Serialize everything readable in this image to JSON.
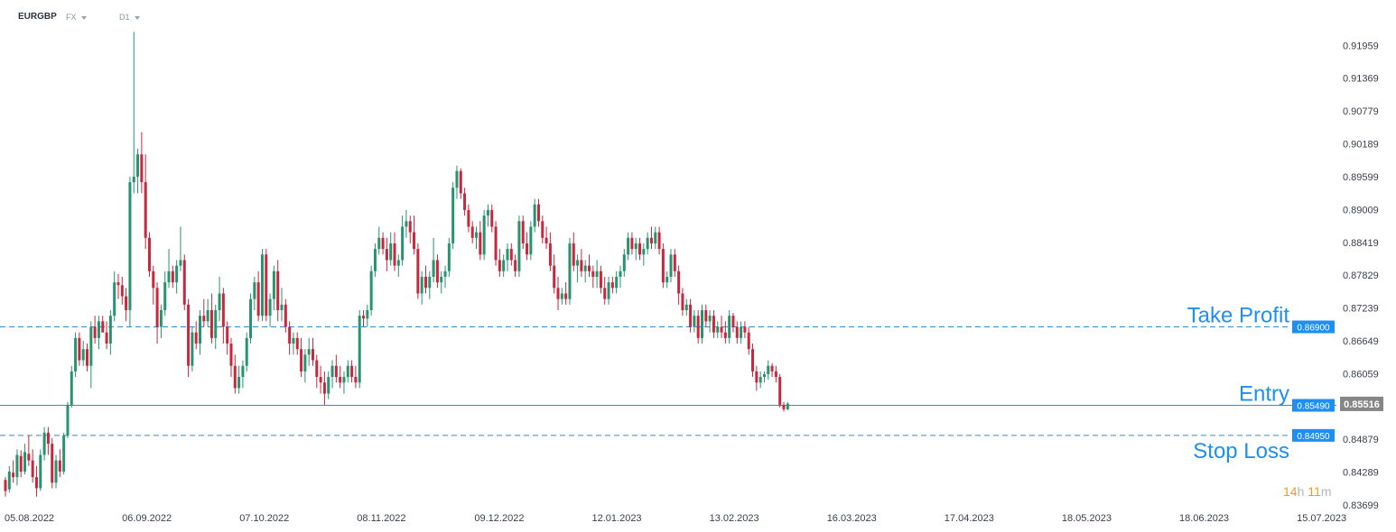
{
  "header": {
    "symbol": "EURGBP",
    "market": "FX",
    "timeframe": "D1"
  },
  "countdown": {
    "hours": "14",
    "hours_unit": "h",
    "minutes": "11",
    "minutes_unit": "m"
  },
  "colors": {
    "up": "#26946f",
    "down": "#c7283e",
    "level_line": "#2b8fd6",
    "level_label": "#1e8ff0",
    "price_label": "#868686",
    "axis_text": "#3a3f48"
  },
  "chart_data": {
    "type": "candlestick",
    "y_range": [
      0.837,
      0.9232
    ],
    "y_ticks": [
      "0.91959",
      "0.91369",
      "0.90779",
      "0.90189",
      "0.89599",
      "0.89009",
      "0.88419",
      "0.87829",
      "0.87239",
      "0.86649",
      "0.86059",
      "0.85469",
      "0.84879",
      "0.84289",
      "0.83699"
    ],
    "x_tick_labels": [
      "05.08.2022",
      "06.09.2022",
      "07.10.2022",
      "08.11.2022",
      "09.12.2022",
      "12.01.2023",
      "13.02.2023",
      "16.03.2023",
      "17.04.2023",
      "18.05.2023",
      "18.06.2023",
      "15.07.2023"
    ],
    "current_price": "0.85516",
    "levels": [
      {
        "name": "Take Profit",
        "price": 0.869,
        "label": "0.86900",
        "style": "dashed"
      },
      {
        "name": "Entry",
        "price": 0.8549,
        "label": "0.85490",
        "style": "solid"
      },
      {
        "name": "Stop Loss",
        "price": 0.8495,
        "label": "0.84950",
        "style": "dashed"
      }
    ],
    "candles": [
      [
        0.8415,
        0.842,
        0.8385,
        0.8395
      ],
      [
        0.8398,
        0.844,
        0.8392,
        0.843
      ],
      [
        0.8428,
        0.845,
        0.841,
        0.842
      ],
      [
        0.842,
        0.847,
        0.8405,
        0.846
      ],
      [
        0.8458,
        0.8468,
        0.842,
        0.843
      ],
      [
        0.843,
        0.848,
        0.8425,
        0.8465
      ],
      [
        0.8462,
        0.8495,
        0.844,
        0.845
      ],
      [
        0.845,
        0.847,
        0.841,
        0.842
      ],
      [
        0.842,
        0.844,
        0.8385,
        0.84
      ],
      [
        0.84,
        0.847,
        0.8395,
        0.846
      ],
      [
        0.846,
        0.851,
        0.845,
        0.85
      ],
      [
        0.85,
        0.851,
        0.846,
        0.848
      ],
      [
        0.848,
        0.849,
        0.84,
        0.841
      ],
      [
        0.841,
        0.846,
        0.84,
        0.845
      ],
      [
        0.845,
        0.847,
        0.842,
        0.843
      ],
      [
        0.843,
        0.85,
        0.8425,
        0.8495
      ],
      [
        0.8495,
        0.8555,
        0.849,
        0.855
      ],
      [
        0.855,
        0.862,
        0.8545,
        0.861
      ],
      [
        0.861,
        0.868,
        0.86,
        0.867
      ],
      [
        0.867,
        0.868,
        0.862,
        0.863
      ],
      [
        0.863,
        0.8665,
        0.862,
        0.865
      ],
      [
        0.865,
        0.866,
        0.861,
        0.862
      ],
      [
        0.862,
        0.87,
        0.858,
        0.869
      ],
      [
        0.869,
        0.871,
        0.866,
        0.867
      ],
      [
        0.867,
        0.871,
        0.865,
        0.87
      ],
      [
        0.87,
        0.871,
        0.868,
        0.868
      ],
      [
        0.868,
        0.87,
        0.865,
        0.866
      ],
      [
        0.866,
        0.872,
        0.864,
        0.871
      ],
      [
        0.871,
        0.879,
        0.87,
        0.877
      ],
      [
        0.877,
        0.8785,
        0.874,
        0.8765
      ],
      [
        0.8765,
        0.878,
        0.873,
        0.8745
      ],
      [
        0.8745,
        0.876,
        0.87,
        0.872
      ],
      [
        0.872,
        0.896,
        0.869,
        0.895
      ],
      [
        0.895,
        0.922,
        0.893,
        0.896
      ],
      [
        0.896,
        0.901,
        0.893,
        0.9
      ],
      [
        0.9,
        0.904,
        0.893,
        0.895
      ],
      [
        0.895,
        0.9,
        0.883,
        0.885
      ],
      [
        0.885,
        0.886,
        0.878,
        0.879
      ],
      [
        0.879,
        0.88,
        0.873,
        0.876
      ],
      [
        0.876,
        0.877,
        0.866,
        0.869
      ],
      [
        0.869,
        0.873,
        0.867,
        0.872
      ],
      [
        0.872,
        0.879,
        0.871,
        0.877
      ],
      [
        0.877,
        0.883,
        0.876,
        0.879
      ],
      [
        0.879,
        0.88,
        0.876,
        0.877
      ],
      [
        0.877,
        0.881,
        0.875,
        0.88
      ],
      [
        0.88,
        0.887,
        0.879,
        0.881
      ],
      [
        0.881,
        0.882,
        0.872,
        0.873
      ],
      [
        0.873,
        0.874,
        0.86,
        0.862
      ],
      [
        0.862,
        0.869,
        0.861,
        0.868
      ],
      [
        0.868,
        0.87,
        0.865,
        0.866
      ],
      [
        0.866,
        0.872,
        0.864,
        0.871
      ],
      [
        0.871,
        0.874,
        0.869,
        0.87
      ],
      [
        0.87,
        0.874,
        0.869,
        0.872
      ],
      [
        0.872,
        0.875,
        0.866,
        0.867
      ],
      [
        0.867,
        0.873,
        0.865,
        0.872
      ],
      [
        0.872,
        0.878,
        0.87,
        0.875
      ],
      [
        0.875,
        0.876,
        0.866,
        0.869
      ],
      [
        0.869,
        0.87,
        0.864,
        0.866
      ],
      [
        0.866,
        0.867,
        0.86,
        0.862
      ],
      [
        0.862,
        0.864,
        0.857,
        0.858
      ],
      [
        0.858,
        0.862,
        0.857,
        0.86
      ],
      [
        0.86,
        0.863,
        0.858,
        0.862
      ],
      [
        0.862,
        0.868,
        0.861,
        0.867
      ],
      [
        0.867,
        0.875,
        0.866,
        0.874
      ],
      [
        0.874,
        0.878,
        0.872,
        0.877
      ],
      [
        0.877,
        0.879,
        0.87,
        0.871
      ],
      [
        0.871,
        0.883,
        0.87,
        0.882
      ],
      [
        0.882,
        0.883,
        0.87,
        0.871
      ],
      [
        0.871,
        0.875,
        0.869,
        0.874
      ],
      [
        0.874,
        0.88,
        0.872,
        0.879
      ],
      [
        0.879,
        0.881,
        0.87,
        0.872
      ],
      [
        0.872,
        0.876,
        0.87,
        0.873
      ],
      [
        0.873,
        0.874,
        0.868,
        0.869
      ],
      [
        0.869,
        0.87,
        0.864,
        0.866
      ],
      [
        0.866,
        0.868,
        0.864,
        0.867
      ],
      [
        0.867,
        0.868,
        0.864,
        0.865
      ],
      [
        0.865,
        0.867,
        0.86,
        0.861
      ],
      [
        0.861,
        0.865,
        0.859,
        0.864
      ],
      [
        0.864,
        0.867,
        0.862,
        0.865
      ],
      [
        0.865,
        0.867,
        0.862,
        0.863
      ],
      [
        0.863,
        0.864,
        0.858,
        0.86
      ],
      [
        0.86,
        0.862,
        0.857,
        0.859
      ],
      [
        0.859,
        0.861,
        0.855,
        0.857
      ],
      [
        0.857,
        0.861,
        0.856,
        0.86
      ],
      [
        0.86,
        0.863,
        0.858,
        0.862
      ],
      [
        0.862,
        0.864,
        0.859,
        0.86
      ],
      [
        0.86,
        0.862,
        0.858,
        0.859
      ],
      [
        0.859,
        0.861,
        0.857,
        0.86
      ],
      [
        0.86,
        0.863,
        0.859,
        0.862
      ],
      [
        0.862,
        0.863,
        0.859,
        0.86
      ],
      [
        0.86,
        0.862,
        0.858,
        0.859
      ],
      [
        0.859,
        0.872,
        0.858,
        0.871
      ],
      [
        0.871,
        0.872,
        0.869,
        0.8705
      ],
      [
        0.8705,
        0.873,
        0.869,
        0.872
      ],
      [
        0.872,
        0.88,
        0.871,
        0.879
      ],
      [
        0.879,
        0.884,
        0.878,
        0.883
      ],
      [
        0.883,
        0.887,
        0.882,
        0.885
      ],
      [
        0.885,
        0.886,
        0.882,
        0.883
      ],
      [
        0.883,
        0.885,
        0.879,
        0.881
      ],
      [
        0.881,
        0.886,
        0.88,
        0.884
      ],
      [
        0.884,
        0.886,
        0.879,
        0.88
      ],
      [
        0.88,
        0.882,
        0.878,
        0.881
      ],
      [
        0.881,
        0.889,
        0.88,
        0.887
      ],
      [
        0.887,
        0.89,
        0.885,
        0.888
      ],
      [
        0.888,
        0.889,
        0.884,
        0.886
      ],
      [
        0.886,
        0.889,
        0.882,
        0.883
      ],
      [
        0.883,
        0.884,
        0.874,
        0.875
      ],
      [
        0.875,
        0.879,
        0.873,
        0.878
      ],
      [
        0.878,
        0.88,
        0.875,
        0.876
      ],
      [
        0.876,
        0.879,
        0.874,
        0.878
      ],
      [
        0.878,
        0.885,
        0.877,
        0.881
      ],
      [
        0.881,
        0.882,
        0.876,
        0.877
      ],
      [
        0.877,
        0.879,
        0.875,
        0.878
      ],
      [
        0.878,
        0.88,
        0.876,
        0.879
      ],
      [
        0.879,
        0.885,
        0.878,
        0.884
      ],
      [
        0.884,
        0.895,
        0.883,
        0.894
      ],
      [
        0.894,
        0.898,
        0.892,
        0.897
      ],
      [
        0.897,
        0.8975,
        0.892,
        0.893
      ],
      [
        0.893,
        0.894,
        0.889,
        0.89
      ],
      [
        0.89,
        0.891,
        0.886,
        0.887
      ],
      [
        0.887,
        0.888,
        0.884,
        0.885
      ],
      [
        0.885,
        0.887,
        0.883,
        0.886
      ],
      [
        0.886,
        0.888,
        0.881,
        0.882
      ],
      [
        0.882,
        0.89,
        0.881,
        0.889
      ],
      [
        0.889,
        0.891,
        0.887,
        0.89
      ],
      [
        0.89,
        0.891,
        0.886,
        0.887
      ],
      [
        0.887,
        0.888,
        0.88,
        0.881
      ],
      [
        0.881,
        0.883,
        0.878,
        0.879
      ],
      [
        0.879,
        0.882,
        0.878,
        0.881
      ],
      [
        0.881,
        0.884,
        0.879,
        0.883
      ],
      [
        0.883,
        0.884,
        0.88,
        0.881
      ],
      [
        0.881,
        0.882,
        0.878,
        0.879
      ],
      [
        0.879,
        0.889,
        0.878,
        0.888
      ],
      [
        0.888,
        0.889,
        0.883,
        0.884
      ],
      [
        0.884,
        0.886,
        0.881,
        0.882
      ],
      [
        0.882,
        0.888,
        0.881,
        0.887
      ],
      [
        0.887,
        0.892,
        0.886,
        0.891
      ],
      [
        0.891,
        0.892,
        0.887,
        0.888
      ],
      [
        0.888,
        0.889,
        0.884,
        0.885
      ],
      [
        0.885,
        0.887,
        0.883,
        0.884
      ],
      [
        0.884,
        0.886,
        0.879,
        0.88
      ],
      [
        0.88,
        0.882,
        0.875,
        0.876
      ],
      [
        0.876,
        0.878,
        0.872,
        0.874
      ],
      [
        0.874,
        0.876,
        0.873,
        0.875
      ],
      [
        0.875,
        0.877,
        0.873,
        0.874
      ],
      [
        0.874,
        0.885,
        0.873,
        0.884
      ],
      [
        0.884,
        0.886,
        0.879,
        0.88
      ],
      [
        0.88,
        0.882,
        0.877,
        0.881
      ],
      [
        0.881,
        0.883,
        0.878,
        0.879
      ],
      [
        0.879,
        0.881,
        0.877,
        0.88
      ],
      [
        0.88,
        0.882,
        0.878,
        0.879
      ],
      [
        0.879,
        0.88,
        0.876,
        0.878
      ],
      [
        0.878,
        0.881,
        0.876,
        0.879
      ],
      [
        0.879,
        0.88,
        0.875,
        0.876
      ],
      [
        0.876,
        0.878,
        0.873,
        0.874
      ],
      [
        0.874,
        0.878,
        0.873,
        0.877
      ],
      [
        0.877,
        0.878,
        0.875,
        0.876
      ],
      [
        0.876,
        0.879,
        0.875,
        0.878
      ],
      [
        0.878,
        0.88,
        0.876,
        0.879
      ],
      [
        0.879,
        0.883,
        0.878,
        0.882
      ],
      [
        0.882,
        0.886,
        0.881,
        0.885
      ],
      [
        0.885,
        0.886,
        0.882,
        0.883
      ],
      [
        0.883,
        0.885,
        0.881,
        0.884
      ],
      [
        0.884,
        0.885,
        0.881,
        0.882
      ],
      [
        0.882,
        0.884,
        0.88,
        0.883
      ],
      [
        0.883,
        0.886,
        0.882,
        0.885
      ],
      [
        0.885,
        0.887,
        0.883,
        0.884
      ],
      [
        0.884,
        0.887,
        0.883,
        0.886
      ],
      [
        0.886,
        0.887,
        0.882,
        0.883
      ],
      [
        0.883,
        0.884,
        0.876,
        0.877
      ],
      [
        0.877,
        0.879,
        0.876,
        0.878
      ],
      [
        0.878,
        0.883,
        0.877,
        0.882
      ],
      [
        0.882,
        0.883,
        0.878,
        0.879
      ],
      [
        0.879,
        0.88,
        0.873,
        0.875
      ],
      [
        0.875,
        0.876,
        0.871,
        0.872
      ],
      [
        0.872,
        0.874,
        0.871,
        0.873
      ],
      [
        0.873,
        0.874,
        0.868,
        0.869
      ],
      [
        0.869,
        0.872,
        0.868,
        0.871
      ],
      [
        0.871,
        0.872,
        0.866,
        0.867
      ],
      [
        0.867,
        0.873,
        0.866,
        0.872
      ],
      [
        0.872,
        0.873,
        0.869,
        0.87
      ],
      [
        0.87,
        0.872,
        0.868,
        0.871
      ],
      [
        0.871,
        0.872,
        0.867,
        0.868
      ],
      [
        0.868,
        0.87,
        0.867,
        0.869
      ],
      [
        0.869,
        0.871,
        0.867,
        0.868
      ],
      [
        0.868,
        0.87,
        0.866,
        0.867
      ],
      [
        0.867,
        0.872,
        0.866,
        0.871
      ],
      [
        0.871,
        0.8715,
        0.868,
        0.869
      ],
      [
        0.869,
        0.87,
        0.866,
        0.867
      ],
      [
        0.867,
        0.87,
        0.866,
        0.869
      ],
      [
        0.869,
        0.87,
        0.867,
        0.868
      ],
      [
        0.868,
        0.869,
        0.864,
        0.865
      ],
      [
        0.865,
        0.866,
        0.86,
        0.861
      ],
      [
        0.861,
        0.862,
        0.8575,
        0.859
      ],
      [
        0.859,
        0.861,
        0.858,
        0.86
      ],
      [
        0.86,
        0.861,
        0.859,
        0.8605
      ],
      [
        0.8605,
        0.863,
        0.8595,
        0.862
      ],
      [
        0.862,
        0.8625,
        0.86,
        0.861
      ],
      [
        0.861,
        0.862,
        0.859,
        0.86
      ],
      [
        0.86,
        0.8605,
        0.8545,
        0.855
      ],
      [
        0.855,
        0.8555,
        0.8538,
        0.8542
      ],
      [
        0.8542,
        0.8555,
        0.854,
        0.8552
      ]
    ]
  }
}
